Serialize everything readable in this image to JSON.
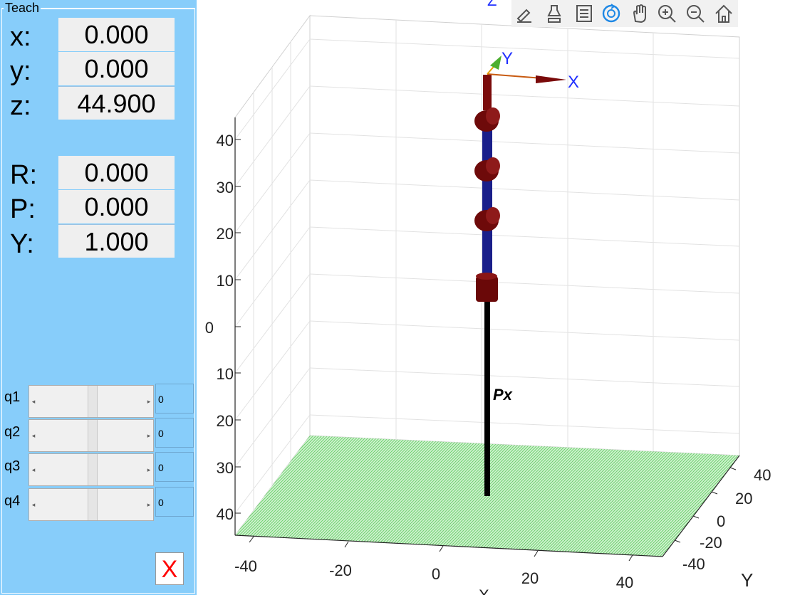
{
  "panel": {
    "title": "Teach",
    "pose": [
      {
        "label": "x:",
        "value": "0.000"
      },
      {
        "label": "y:",
        "value": "0.000"
      },
      {
        "label": "z:",
        "value": "44.900"
      },
      {
        "label": "R:",
        "value": "0.000"
      },
      {
        "label": "P:",
        "value": "0.000"
      },
      {
        "label": "Y:",
        "value": "1.000"
      }
    ],
    "joints": [
      {
        "label": "q1",
        "value": "0"
      },
      {
        "label": "q2",
        "value": "0"
      },
      {
        "label": "q3",
        "value": "0"
      },
      {
        "label": "q4",
        "value": "0"
      }
    ],
    "close_label": "X"
  },
  "toolbar": {
    "icons": [
      "brush-edit-icon",
      "data-cursor-icon",
      "legend-icon",
      "rotate-3d-icon",
      "pan-icon",
      "zoom-in-icon",
      "zoom-out-icon",
      "home-icon"
    ],
    "active_icon": "rotate-3d-icon",
    "accent": "#1e88e5"
  },
  "plot": {
    "z_ticks": [
      "40",
      "30",
      "20",
      "10",
      "0",
      "10",
      "20",
      "30",
      "40"
    ],
    "x_ticks": [
      "-40",
      "-20",
      "0",
      "20",
      "40"
    ],
    "y_ticks": [
      "40",
      "20",
      "0",
      "-20",
      "-40"
    ],
    "y_axis_label": "Y",
    "top_cut_label": "Z",
    "bottom_cut_label": "X",
    "robot_name": "Px",
    "frame_labels": {
      "x": "X",
      "y": "Y"
    },
    "colors": {
      "floor": "#8fd98f",
      "joint": "#7a0a0a",
      "link": "#1a1f8a",
      "base_pole": "#000000",
      "frame_x": "#c85a10",
      "frame_label": "#2030ff"
    }
  }
}
